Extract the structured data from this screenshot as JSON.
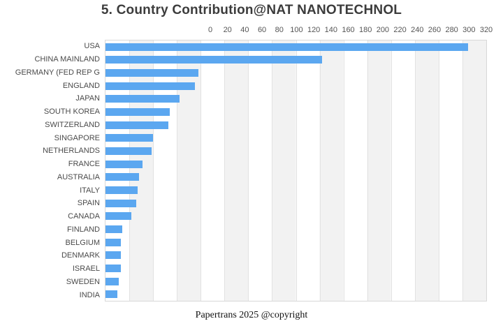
{
  "title": "5. Country Contribution@NAT NANOTECHNOL",
  "footer": "Papertrans 2025 @copyright",
  "colors": {
    "bar": "#5ba7f0",
    "stripe": "#f2f2f2",
    "gridline": "#e2e2e2",
    "plot_border": "#d8d8d8",
    "title_text": "#3c3c3c",
    "tick_text": "#555555",
    "category_text": "#4a4a4a"
  },
  "chart_data": {
    "type": "bar",
    "orientation": "horizontal",
    "title": "5. Country Contribution@NAT NANOTECHNOL",
    "xlabel": "",
    "ylabel": "",
    "xlim": [
      0,
      320
    ],
    "xticks": [
      0,
      20,
      40,
      60,
      80,
      100,
      120,
      140,
      160,
      180,
      200,
      220,
      240,
      260,
      280,
      300,
      320
    ],
    "grid": true,
    "legend": "none",
    "categories": [
      "USA",
      "CHINA MAINLAND",
      "GERMANY (FED REP G",
      "ENGLAND",
      "JAPAN",
      "SOUTH KOREA",
      "SWITZERLAND",
      "SINGAPORE",
      "NETHERLANDS",
      "FRANCE",
      "AUSTRALIA",
      "ITALY",
      "SPAIN",
      "CANADA",
      "FINLAND",
      "BELGIUM",
      "DENMARK",
      "ISRAEL",
      "SWEDEN",
      "INDIA"
    ],
    "values": [
      305,
      182,
      78,
      75,
      62,
      54,
      53,
      40,
      39,
      31,
      28,
      27,
      26,
      22,
      14,
      13,
      13,
      13,
      11,
      10
    ]
  }
}
